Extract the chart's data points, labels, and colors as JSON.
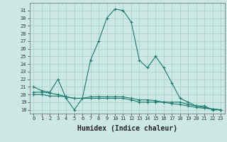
{
  "xlabel": "Humidex (Indice chaleur)",
  "ylabel": "",
  "x": [
    0,
    1,
    2,
    3,
    4,
    5,
    6,
    7,
    8,
    9,
    10,
    11,
    12,
    13,
    14,
    15,
    16,
    17,
    18,
    19,
    20,
    21,
    22,
    23
  ],
  "line1": [
    21.0,
    20.5,
    20.3,
    22.0,
    19.5,
    18.0,
    19.5,
    24.5,
    27.0,
    30.0,
    31.2,
    31.0,
    29.5,
    24.5,
    23.5,
    25.0,
    23.5,
    21.5,
    19.5,
    19.0,
    18.5,
    18.5,
    18.0,
    18.0
  ],
  "line2": [
    20.3,
    20.3,
    20.2,
    20.0,
    19.7,
    19.5,
    19.5,
    19.7,
    19.7,
    19.7,
    19.7,
    19.7,
    19.5,
    19.3,
    19.3,
    19.2,
    19.0,
    19.0,
    19.0,
    18.7,
    18.5,
    18.3,
    18.1,
    18.0
  ],
  "line3": [
    20.0,
    20.0,
    19.8,
    19.8,
    19.7,
    19.5,
    19.5,
    19.5,
    19.5,
    19.5,
    19.5,
    19.5,
    19.3,
    19.0,
    19.0,
    19.0,
    19.0,
    18.8,
    18.7,
    18.5,
    18.3,
    18.2,
    18.1,
    18.0
  ],
  "line_color": "#1a7a6e",
  "bg_color": "#cce8e5",
  "grid_color": "#aaccca",
  "plot_bg": "#cce8e5",
  "xlim": [
    -0.5,
    23.5
  ],
  "ylim": [
    17.5,
    32.0
  ],
  "yticks": [
    18,
    19,
    20,
    21,
    22,
    23,
    24,
    25,
    26,
    27,
    28,
    29,
    30,
    31
  ],
  "xticks": [
    0,
    1,
    2,
    3,
    4,
    5,
    6,
    7,
    8,
    9,
    10,
    11,
    12,
    13,
    14,
    15,
    16,
    17,
    18,
    19,
    20,
    21,
    22,
    23
  ],
  "tick_fontsize": 5.0,
  "xlabel_fontsize": 7.0,
  "marker": "+",
  "marker_size": 3.5,
  "linewidth": 0.8
}
